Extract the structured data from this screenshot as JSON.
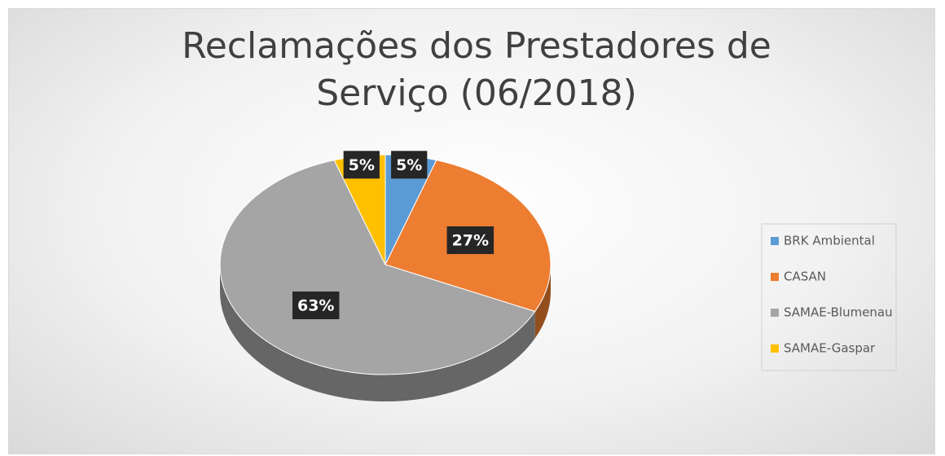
{
  "chart_data": {
    "type": "pie",
    "title": "Reclamações dos Prestadores de Serviço (06/2018)",
    "categories": [
      "BRK Ambiental",
      "CASAN",
      "SAMAE-Blumenau",
      "SAMAE-Gaspar"
    ],
    "values": [
      5,
      27,
      63,
      5
    ],
    "value_labels": [
      "5%",
      "27%",
      "63%",
      "5%"
    ],
    "colors": [
      "#5b9bd5",
      "#ed7d31",
      "#a5a5a5",
      "#ffc000"
    ],
    "legend": "right"
  }
}
